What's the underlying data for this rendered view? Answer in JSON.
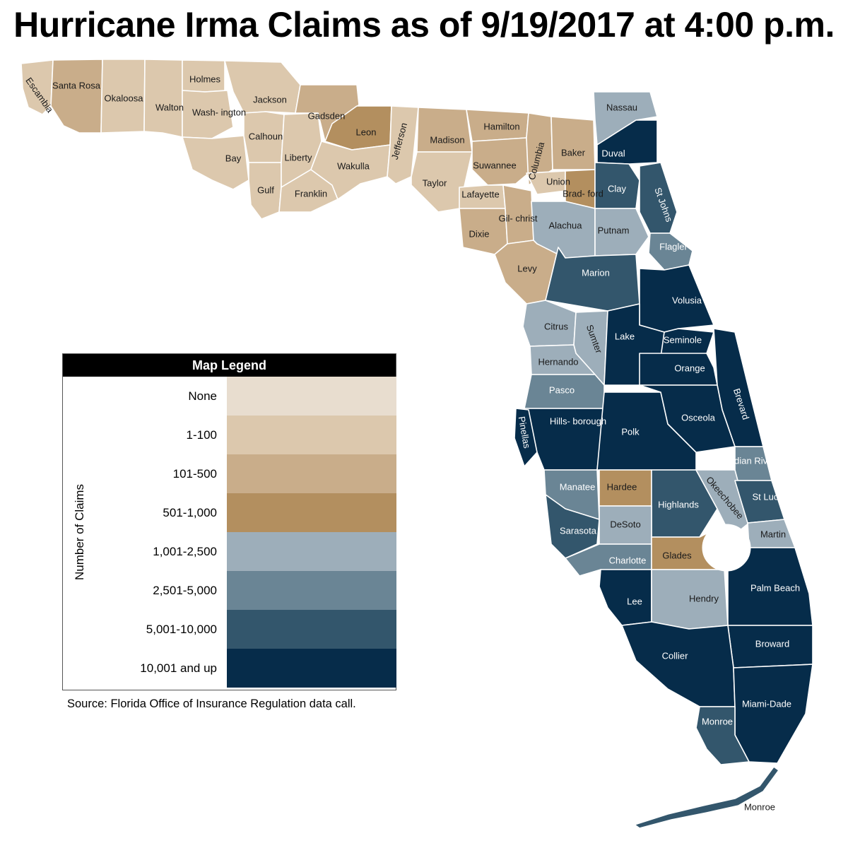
{
  "title": "Hurricane Irma Claims as of 9/19/2017 at 4:00 p.m.",
  "legend": {
    "heading": "Map Legend",
    "axis_label": "Number of Claims",
    "classes": [
      {
        "label": "None",
        "color": "#e8ddcf"
      },
      {
        "label": "1-100",
        "color": "#dcc8ad"
      },
      {
        "label": "101-500",
        "color": "#c9ad8a"
      },
      {
        "label": "501-1,000",
        "color": "#b38f5f"
      },
      {
        "label": "1,001-2,500",
        "color": "#9daeba"
      },
      {
        "label": "2,501-5,000",
        "color": "#6a8595"
      },
      {
        "label": "5,001-10,000",
        "color": "#33566c"
      },
      {
        "label": "10,001 and up",
        "color": "#062c4a"
      }
    ]
  },
  "source": "Source: Florida Office of Insurance Regulation data call.",
  "counties": [
    {
      "name": "Escambia",
      "class": 1
    },
    {
      "name": "Santa Rosa",
      "class": 2
    },
    {
      "name": "Okaloosa",
      "class": 1
    },
    {
      "name": "Walton",
      "class": 1
    },
    {
      "name": "Holmes",
      "class": 1
    },
    {
      "name": "Washington",
      "label": "Wash- ington",
      "class": 1
    },
    {
      "name": "Jackson",
      "class": 1
    },
    {
      "name": "Bay",
      "class": 1
    },
    {
      "name": "Calhoun",
      "class": 1
    },
    {
      "name": "Gulf",
      "class": 1
    },
    {
      "name": "Liberty",
      "class": 1
    },
    {
      "name": "Franklin",
      "class": 1
    },
    {
      "name": "Gadsden",
      "class": 2
    },
    {
      "name": "Leon",
      "class": 3
    },
    {
      "name": "Wakulla",
      "class": 1
    },
    {
      "name": "Jefferson",
      "class": 1
    },
    {
      "name": "Madison",
      "class": 2
    },
    {
      "name": "Taylor",
      "class": 1
    },
    {
      "name": "Hamilton",
      "class": 2
    },
    {
      "name": "Suwannee",
      "class": 2
    },
    {
      "name": "Lafayette",
      "class": 1
    },
    {
      "name": "Columbia",
      "class": 2
    },
    {
      "name": "Baker",
      "class": 2
    },
    {
      "name": "Union",
      "class": 1
    },
    {
      "name": "Bradford",
      "label": "Brad- ford",
      "class": 3
    },
    {
      "name": "Dixie",
      "class": 2
    },
    {
      "name": "Gilchrist",
      "label": "Gil- christ",
      "class": 2
    },
    {
      "name": "Levy",
      "class": 2
    },
    {
      "name": "Alachua",
      "class": 4
    },
    {
      "name": "Nassau",
      "class": 4
    },
    {
      "name": "Duval",
      "class": 7
    },
    {
      "name": "Clay",
      "class": 6
    },
    {
      "name": "St Johns",
      "class": 6
    },
    {
      "name": "Putnam",
      "class": 4
    },
    {
      "name": "Flagler",
      "class": 5
    },
    {
      "name": "Marion",
      "class": 6
    },
    {
      "name": "Volusia",
      "class": 7
    },
    {
      "name": "Citrus",
      "class": 4
    },
    {
      "name": "Sumter",
      "class": 4
    },
    {
      "name": "Lake",
      "class": 7
    },
    {
      "name": "Seminole",
      "class": 7
    },
    {
      "name": "Hernando",
      "class": 4
    },
    {
      "name": "Orange",
      "class": 7
    },
    {
      "name": "Brevard",
      "class": 7
    },
    {
      "name": "Pasco",
      "class": 5
    },
    {
      "name": "Hillsborough",
      "label": "Hills- borough",
      "class": 7
    },
    {
      "name": "Pinellas",
      "class": 7
    },
    {
      "name": "Polk",
      "class": 7
    },
    {
      "name": "Osceola",
      "class": 7
    },
    {
      "name": "Indian River",
      "label": "Indian River",
      "class": 5
    },
    {
      "name": "Manatee",
      "class": 5
    },
    {
      "name": "Hardee",
      "class": 3
    },
    {
      "name": "Highlands",
      "class": 6
    },
    {
      "name": "Okeechobee",
      "class": 4
    },
    {
      "name": "St Lucie",
      "class": 6
    },
    {
      "name": "Sarasota",
      "class": 6
    },
    {
      "name": "DeSoto",
      "class": 4
    },
    {
      "name": "Martin",
      "class": 4
    },
    {
      "name": "Charlotte",
      "class": 5
    },
    {
      "name": "Glades",
      "class": 3
    },
    {
      "name": "Palm Beach",
      "class": 7
    },
    {
      "name": "Lee",
      "class": 7
    },
    {
      "name": "Hendry",
      "class": 4
    },
    {
      "name": "Broward",
      "class": 7
    },
    {
      "name": "Collier",
      "class": 7
    },
    {
      "name": "Miami-Dade",
      "class": 7
    },
    {
      "name": "Monroe",
      "class": 6
    },
    {
      "name": "Monroe Keys",
      "label": "Monroe",
      "class": 6
    }
  ]
}
